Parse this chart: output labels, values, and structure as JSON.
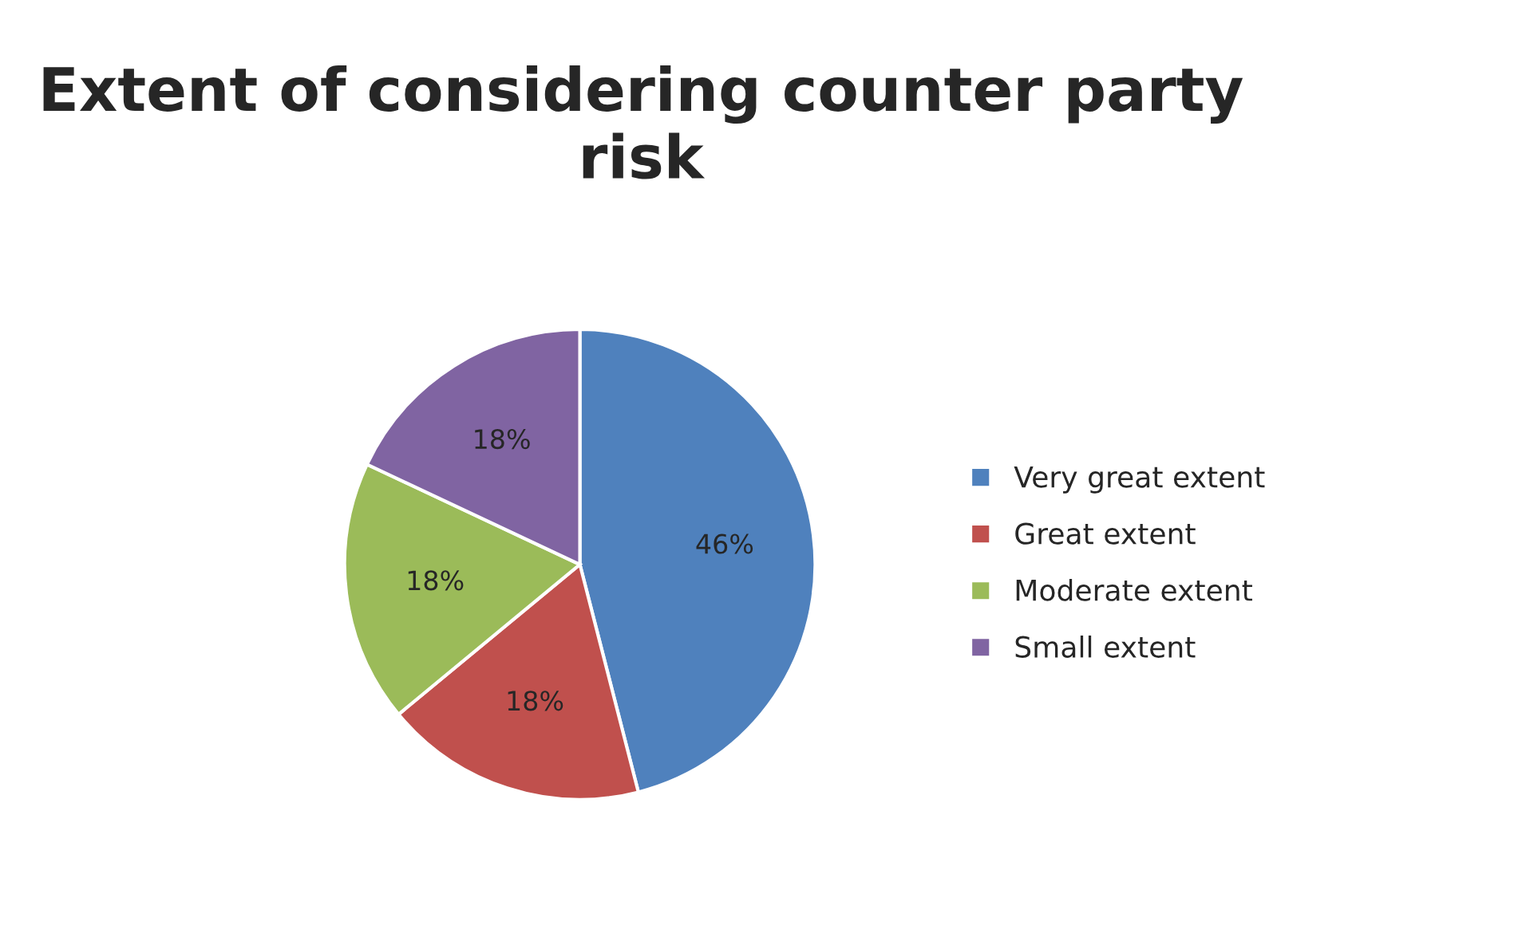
{
  "chart_data": {
    "type": "pie",
    "title": "Extent of considering counter party risk",
    "categories": [
      "Very great extent",
      "Great extent",
      "Moderate extent",
      "Small extent"
    ],
    "values": [
      46,
      18,
      18,
      18
    ],
    "value_labels": [
      "46%",
      "18%",
      "18%",
      "18%"
    ],
    "colors": [
      "#4f81bd",
      "#c0504d",
      "#9bbb59",
      "#8064a2"
    ],
    "legend": "right"
  }
}
